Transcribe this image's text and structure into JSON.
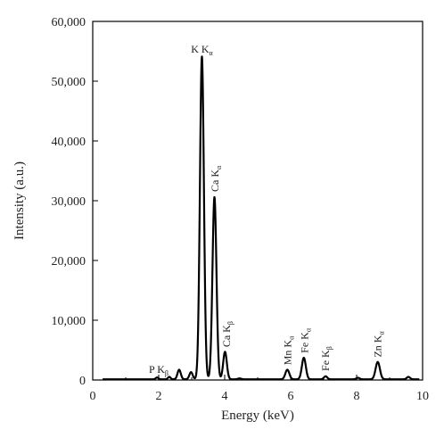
{
  "chart_data": {
    "type": "line",
    "title": "",
    "xlabel": "Energy (keV)",
    "ylabel": "Intensity (a.u.)",
    "xlim": [
      0,
      10
    ],
    "ylim": [
      0,
      60000
    ],
    "x_ticks": [
      0,
      2,
      4,
      6,
      8,
      10
    ],
    "x_tick_labels": [
      "0",
      "2",
      "4",
      "6",
      "8",
      "10"
    ],
    "y_ticks": [
      0,
      10000,
      20000,
      30000,
      40000,
      50000,
      60000
    ],
    "y_tick_labels": [
      "0",
      "10,000",
      "20,000",
      "30,000",
      "40,000",
      "50,000",
      "60,000"
    ],
    "grid": false,
    "line_color": "#000000",
    "peaks": [
      {
        "center": 1.95,
        "height": 300,
        "width": 0.04
      },
      {
        "center": 2.32,
        "height": 400,
        "width": 0.04
      },
      {
        "center": 2.62,
        "height": 1600,
        "width": 0.05
      },
      {
        "center": 2.98,
        "height": 1200,
        "width": 0.05
      },
      {
        "center": 3.31,
        "height": 54000,
        "width": 0.06
      },
      {
        "center": 3.69,
        "height": 30500,
        "width": 0.06
      },
      {
        "center": 4.01,
        "height": 4600,
        "width": 0.055
      },
      {
        "center": 4.45,
        "height": 150,
        "width": 0.05
      },
      {
        "center": 5.9,
        "height": 1600,
        "width": 0.06
      },
      {
        "center": 6.4,
        "height": 3600,
        "width": 0.06
      },
      {
        "center": 7.06,
        "height": 500,
        "width": 0.05
      },
      {
        "center": 8.04,
        "height": 250,
        "width": 0.05
      },
      {
        "center": 8.64,
        "height": 2900,
        "width": 0.065
      },
      {
        "center": 9.57,
        "height": 400,
        "width": 0.05
      }
    ],
    "annotations": [
      {
        "id": "p-kbeta",
        "base": "P K",
        "sub": "β",
        "x": 2.0,
        "y": 1200,
        "orientation": "horizontal"
      },
      {
        "id": "k-kalpha",
        "base": "K K",
        "sub": "α",
        "x": 3.31,
        "y": 54800,
        "orientation": "horizontal"
      },
      {
        "id": "ca-kalpha",
        "base": "Ca K",
        "sub": "α",
        "x": 3.7,
        "y": 31500,
        "orientation": "vertical"
      },
      {
        "id": "ca-kbeta",
        "base": "Ca K",
        "sub": "β",
        "x": 4.05,
        "y": 5500,
        "orientation": "vertical"
      },
      {
        "id": "mn-kalpha",
        "base": "Mn K",
        "sub": "α",
        "x": 5.9,
        "y": 2500,
        "orientation": "vertical"
      },
      {
        "id": "fe-kalpha",
        "base": "Fe K",
        "sub": "α",
        "x": 6.42,
        "y": 4500,
        "orientation": "vertical"
      },
      {
        "id": "fe-kbeta",
        "base": "Fe K",
        "sub": "β",
        "x": 7.06,
        "y": 1500,
        "orientation": "vertical"
      },
      {
        "id": "zn-kalpha",
        "base": "Zn K",
        "sub": "α",
        "x": 8.64,
        "y": 3800,
        "orientation": "vertical"
      }
    ]
  }
}
